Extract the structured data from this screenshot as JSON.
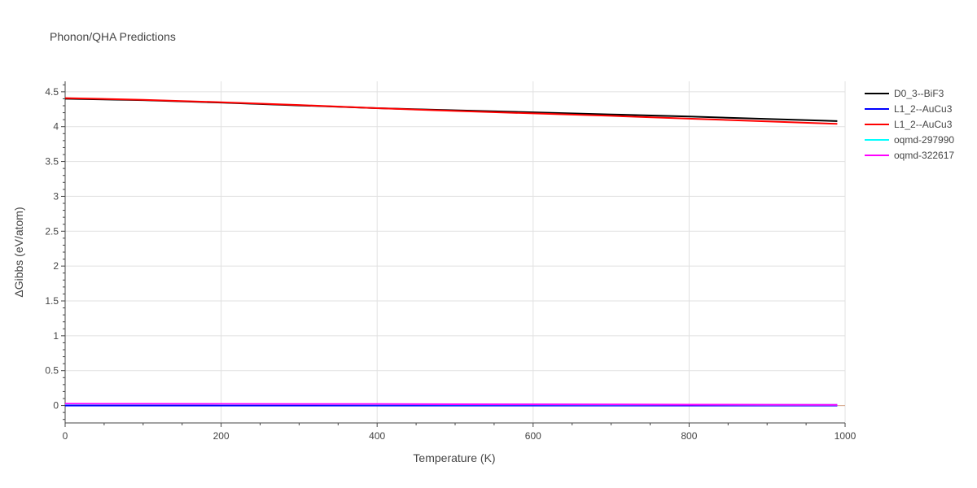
{
  "chart_data": {
    "type": "line",
    "title": "Phonon/QHA Predictions",
    "xlabel": "Temperature (K)",
    "ylabel": "ΔGibbs (eV/atom)",
    "xlim": [
      0,
      1000
    ],
    "ylim": [
      -0.25,
      4.65
    ],
    "xticks": [
      0,
      200,
      400,
      600,
      800,
      1000
    ],
    "xtick_labels": [
      "0",
      "200",
      "400",
      "600",
      "800",
      "1000"
    ],
    "yticks": [
      0,
      0.5,
      1,
      1.5,
      2,
      2.5,
      3,
      3.5,
      4,
      4.5
    ],
    "ytick_labels": [
      "0",
      "0.5",
      "1",
      "1.5",
      "2",
      "2.5",
      "3",
      "3.5",
      "4",
      "4.5"
    ],
    "grid": true,
    "legend_position": "right",
    "x": [
      0,
      100,
      200,
      300,
      400,
      500,
      600,
      700,
      800,
      900,
      990
    ],
    "series": [
      {
        "name": "D0_3--BiF3",
        "color": "#000000",
        "values": [
          4.4,
          4.38,
          4.345,
          4.305,
          4.265,
          4.235,
          4.205,
          4.175,
          4.145,
          4.11,
          4.08
        ]
      },
      {
        "name": "L1_2--AuCu3",
        "color": "#0000ff",
        "values": [
          0.0,
          0.0,
          0.0,
          0.0,
          0.0,
          0.0,
          0.0,
          0.0,
          0.0,
          0.0,
          0.0
        ]
      },
      {
        "name": "L1_2--AuCu3",
        "color": "#ff0000",
        "values": [
          4.41,
          4.385,
          4.35,
          4.31,
          4.265,
          4.225,
          4.19,
          4.155,
          4.115,
          4.075,
          4.04
        ]
      },
      {
        "name": "oqmd-297990",
        "color": "#00ffff",
        "values": [
          0.02,
          0.02,
          0.019,
          0.018,
          0.017,
          0.016,
          0.015,
          0.013,
          0.012,
          0.01,
          0.009
        ]
      },
      {
        "name": "oqmd-322617",
        "color": "#ff00ff",
        "values": [
          0.025,
          0.024,
          0.023,
          0.022,
          0.021,
          0.019,
          0.017,
          0.015,
          0.013,
          0.011,
          0.009
        ]
      }
    ]
  }
}
